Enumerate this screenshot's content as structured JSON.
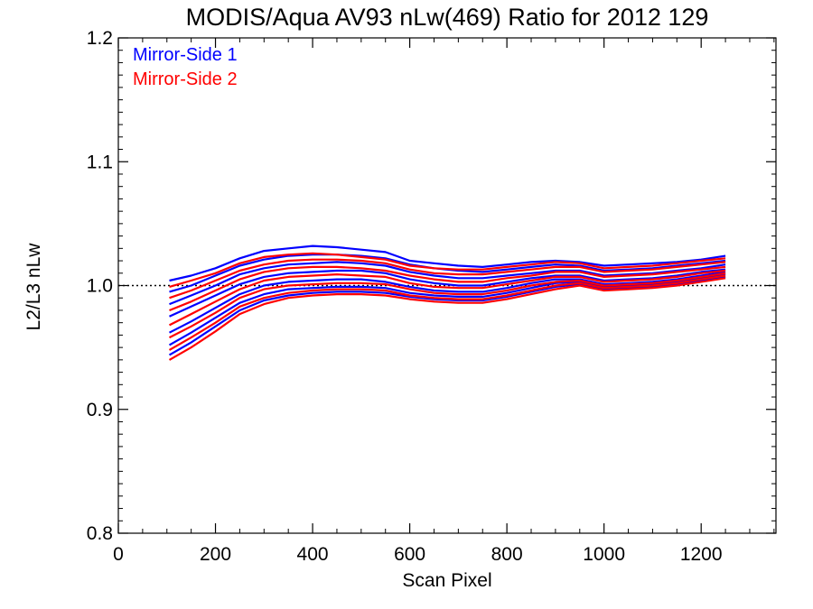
{
  "chart_data": {
    "type": "line",
    "title": "MODIS/Aqua AV93 nLw(469) Ratio for 2012 129",
    "xlabel": "Scan Pixel",
    "ylabel": "L2/L3 nLw",
    "xlim": [
      0,
      1354
    ],
    "ylim": [
      0.8,
      1.2
    ],
    "x_ticks": [
      0,
      200,
      400,
      600,
      800,
      1000,
      1200
    ],
    "x_tick_labels": [
      "0",
      "200",
      "400",
      "600",
      "800",
      "1000",
      "1200"
    ],
    "y_ticks": [
      0.8,
      0.9,
      1.0,
      1.1,
      1.2
    ],
    "y_tick_labels": [
      "0.8",
      "0.9",
      "1.0",
      "1.1",
      "1.2"
    ],
    "reference_line": {
      "y": 1.0,
      "style": "dotted"
    },
    "grid": false,
    "legend_position": "top-left",
    "colors": {
      "mirror_side_1": "#0000ff",
      "mirror_side_2": "#ff0000",
      "axis": "#000000"
    },
    "x": [
      105,
      150,
      200,
      250,
      300,
      350,
      400,
      450,
      500,
      550,
      600,
      650,
      700,
      750,
      800,
      850,
      900,
      950,
      1000,
      1050,
      1100,
      1150,
      1200,
      1250
    ],
    "series": [
      {
        "name": "Mirror-Side 1",
        "color": "#0000ff",
        "lines": [
          [
            1.004,
            1.008,
            1.014,
            1.022,
            1.028,
            1.03,
            1.032,
            1.031,
            1.029,
            1.027,
            1.02,
            1.018,
            1.016,
            1.015,
            1.017,
            1.019,
            1.02,
            1.019,
            1.016,
            1.017,
            1.018,
            1.019,
            1.021,
            1.024
          ],
          [
            0.995,
            1.0,
            1.008,
            1.016,
            1.021,
            1.024,
            1.025,
            1.025,
            1.024,
            1.022,
            1.017,
            1.014,
            1.012,
            1.011,
            1.013,
            1.015,
            1.017,
            1.016,
            1.012,
            1.013,
            1.014,
            1.016,
            1.018,
            1.02
          ],
          [
            0.985,
            0.992,
            1.0,
            1.009,
            1.014,
            1.017,
            1.018,
            1.019,
            1.018,
            1.016,
            1.011,
            1.008,
            1.006,
            1.006,
            1.008,
            1.01,
            1.012,
            1.012,
            1.008,
            1.009,
            1.01,
            1.012,
            1.014,
            1.017
          ],
          [
            0.975,
            0.983,
            0.992,
            1.001,
            1.007,
            1.01,
            1.011,
            1.012,
            1.012,
            1.01,
            1.005,
            1.002,
            1.0,
            1.0,
            1.003,
            1.006,
            1.008,
            1.008,
            1.004,
            1.005,
            1.006,
            1.008,
            1.011,
            1.013
          ],
          [
            0.962,
            0.971,
            0.982,
            0.993,
            1.0,
            1.003,
            1.004,
            1.005,
            1.005,
            1.003,
            0.999,
            0.996,
            0.995,
            0.995,
            0.998,
            1.002,
            1.005,
            1.005,
            1.001,
            1.002,
            1.003,
            1.005,
            1.008,
            1.011
          ],
          [
            0.952,
            0.962,
            0.974,
            0.986,
            0.993,
            0.997,
            0.998,
            0.999,
            0.999,
            0.998,
            0.994,
            0.992,
            0.991,
            0.991,
            0.994,
            0.998,
            1.002,
            1.003,
            0.999,
            1.0,
            1.001,
            1.003,
            1.006,
            1.009
          ],
          [
            0.944,
            0.954,
            0.967,
            0.98,
            0.988,
            0.992,
            0.994,
            0.995,
            0.995,
            0.994,
            0.991,
            0.989,
            0.988,
            0.988,
            0.991,
            0.995,
            0.999,
            1.001,
            0.997,
            0.998,
            0.999,
            1.001,
            1.004,
            1.007
          ]
        ]
      },
      {
        "name": "Mirror-Side 2",
        "color": "#ff0000",
        "lines": [
          [
            0.999,
            1.004,
            1.01,
            1.018,
            1.023,
            1.025,
            1.026,
            1.025,
            1.023,
            1.021,
            1.016,
            1.014,
            1.013,
            1.013,
            1.015,
            1.017,
            1.019,
            1.018,
            1.014,
            1.015,
            1.016,
            1.018,
            1.02,
            1.022
          ],
          [
            0.99,
            0.996,
            1.004,
            1.012,
            1.017,
            1.02,
            1.021,
            1.021,
            1.02,
            1.018,
            1.013,
            1.01,
            1.009,
            1.009,
            1.011,
            1.013,
            1.015,
            1.015,
            1.011,
            1.012,
            1.013,
            1.015,
            1.017,
            1.019
          ],
          [
            0.98,
            0.987,
            0.996,
            1.005,
            1.011,
            1.014,
            1.015,
            1.015,
            1.014,
            1.012,
            1.008,
            1.005,
            1.003,
            1.003,
            1.006,
            1.008,
            1.011,
            1.011,
            1.007,
            1.008,
            1.009,
            1.011,
            1.013,
            1.015
          ],
          [
            0.968,
            0.977,
            0.987,
            0.997,
            1.004,
            1.007,
            1.008,
            1.009,
            1.008,
            1.007,
            1.002,
            0.999,
            0.998,
            0.998,
            1.001,
            1.004,
            1.007,
            1.007,
            1.003,
            1.004,
            1.005,
            1.007,
            1.01,
            1.012
          ],
          [
            0.958,
            0.967,
            0.978,
            0.99,
            0.997,
            1.0,
            1.001,
            1.002,
            1.002,
            1.001,
            0.997,
            0.994,
            0.993,
            0.993,
            0.996,
            1.0,
            1.003,
            1.004,
            1.0,
            1.001,
            1.002,
            1.004,
            1.007,
            1.01
          ],
          [
            0.948,
            0.958,
            0.97,
            0.983,
            0.99,
            0.994,
            0.996,
            0.997,
            0.997,
            0.996,
            0.992,
            0.99,
            0.989,
            0.989,
            0.992,
            0.996,
            1.0,
            1.002,
            0.998,
            0.999,
            1.0,
            1.002,
            1.005,
            1.008
          ],
          [
            0.94,
            0.95,
            0.963,
            0.977,
            0.985,
            0.99,
            0.992,
            0.993,
            0.993,
            0.992,
            0.989,
            0.987,
            0.986,
            0.986,
            0.989,
            0.993,
            0.997,
            1.0,
            0.996,
            0.997,
            0.998,
            1.0,
            1.003,
            1.006
          ]
        ]
      }
    ]
  }
}
